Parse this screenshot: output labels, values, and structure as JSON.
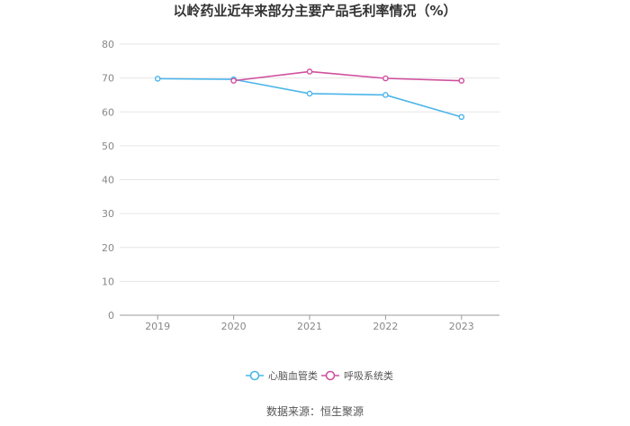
{
  "chart_data": {
    "type": "line",
    "title": "以岭药业近年来部分主要产品毛利率情况（%）",
    "categories": [
      "2019",
      "2020",
      "2021",
      "2022",
      "2023"
    ],
    "series": [
      {
        "name": "心脑血管类",
        "color": "#4bb5ea",
        "values": [
          69.8,
          69.6,
          65.4,
          65.0,
          58.5
        ]
      },
      {
        "name": "呼吸系统类",
        "color": "#d0509f",
        "values": [
          null,
          69.2,
          71.9,
          69.9,
          69.2
        ]
      }
    ],
    "ylim": [
      0,
      80
    ],
    "yticks": [
      0,
      10,
      20,
      30,
      40,
      50,
      60,
      70,
      80
    ],
    "grid": true,
    "legend_position": "bottom"
  },
  "source_text": "数据来源：恒生聚源"
}
